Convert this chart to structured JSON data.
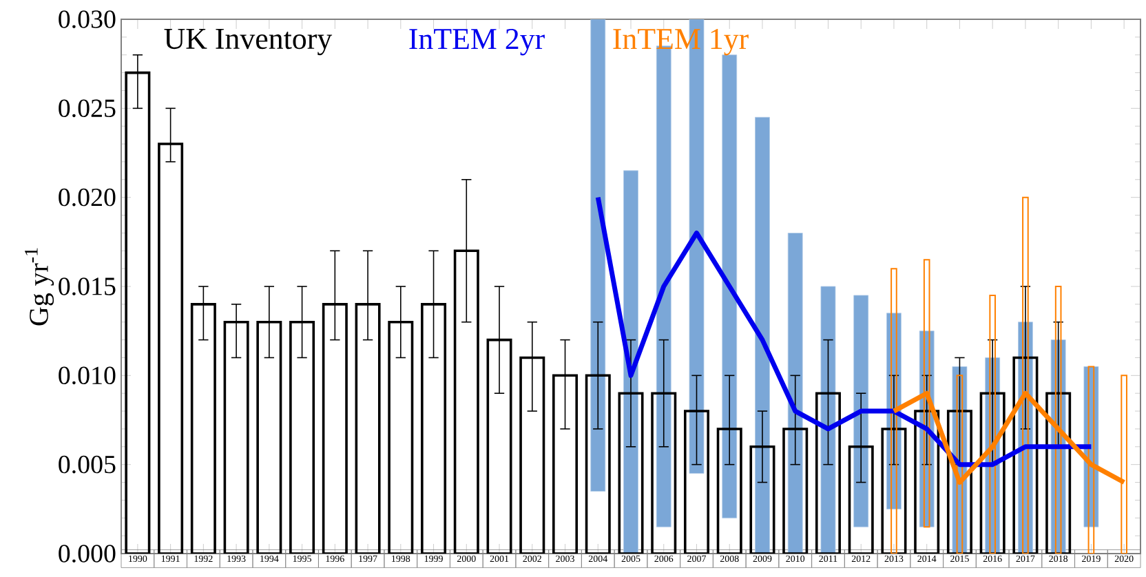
{
  "chart_data": {
    "type": "bar",
    "ylabel": "Gg yr$^{-1}$",
    "categories": [
      "1990",
      "1991",
      "1992",
      "1993",
      "1994",
      "1995",
      "1996",
      "1997",
      "1998",
      "1999",
      "2000",
      "2001",
      "2002",
      "2003",
      "2004",
      "2005",
      "2006",
      "2007",
      "2008",
      "2009",
      "2010",
      "2011",
      "2012",
      "2013",
      "2014",
      "2015",
      "2016",
      "2017",
      "2018",
      "2019",
      "2020"
    ],
    "ylim": [
      0,
      0.03
    ],
    "yticks": [
      {
        "value": 0,
        "label": "0.000"
      },
      {
        "value": 0.005,
        "label": "0.005"
      },
      {
        "value": 0.01,
        "label": "0.010"
      },
      {
        "value": 0.015,
        "label": "0.015"
      },
      {
        "value": 0.02,
        "label": "0.020"
      },
      {
        "value": 0.025,
        "label": "0.025"
      },
      {
        "value": 0.03,
        "label": "0.030"
      }
    ],
    "legend": "top left",
    "grid": false,
    "series": [
      {
        "name": "UK Inventory",
        "color": "#000000",
        "values": [
          0.027,
          0.023,
          0.014,
          0.013,
          0.013,
          0.013,
          0.014,
          0.014,
          0.013,
          0.014,
          0.017,
          0.012,
          0.011,
          0.01,
          0.01,
          0.009,
          0.009,
          0.008,
          0.007,
          0.006,
          0.007,
          0.009,
          0.006,
          0.007,
          0.008,
          0.008,
          0.009,
          0.011,
          0.009,
          null,
          null
        ],
        "errors": [
          [
            0.025,
            0.028
          ],
          [
            0.022,
            0.025
          ],
          [
            0.012,
            0.015
          ],
          [
            0.011,
            0.014
          ],
          [
            0.011,
            0.015
          ],
          [
            0.011,
            0.015
          ],
          [
            0.012,
            0.017
          ],
          [
            0.012,
            0.017
          ],
          [
            0.011,
            0.015
          ],
          [
            0.011,
            0.017
          ],
          [
            0.013,
            0.021
          ],
          [
            0.009,
            0.015
          ],
          [
            0.008,
            0.013
          ],
          [
            0.007,
            0.012
          ],
          [
            0.007,
            0.013
          ],
          [
            0.006,
            0.012
          ],
          [
            0.006,
            0.012
          ],
          [
            0.005,
            0.01
          ],
          [
            0.005,
            0.01
          ],
          [
            0.004,
            0.008
          ],
          [
            0.005,
            0.01
          ],
          [
            0.005,
            0.012
          ],
          [
            0.004,
            0.009
          ],
          [
            0.005,
            0.01
          ],
          [
            0.005,
            0.01
          ],
          [
            0.005,
            0.011
          ],
          [
            0.005,
            0.012
          ],
          [
            0.007,
            0.015
          ],
          [
            0.006,
            0.013
          ],
          null,
          null
        ]
      },
      {
        "type": "bar",
        "color": "#7ba7d7",
        "base": [
          null,
          null,
          null,
          null,
          null,
          null,
          null,
          null,
          null,
          null,
          null,
          null,
          null,
          null,
          0.0035,
          0,
          0.0015,
          0.0045,
          0.002,
          0,
          0,
          0,
          0.0015,
          0.0025,
          0.0015,
          0,
          0,
          0,
          0,
          0.0015,
          null
        ],
        "values": [
          null,
          null,
          null,
          null,
          null,
          null,
          null,
          null,
          null,
          null,
          null,
          null,
          null,
          null,
          0.0265,
          0.0215,
          0.027,
          0.0255,
          0.026,
          0.0245,
          0.018,
          0.015,
          0.013,
          0.011,
          0.011,
          0.0105,
          0.011,
          0.013,
          0.012,
          0.009,
          null
        ]
      },
      {
        "name": "InTEM 2yr",
        "type": "line",
        "color": "#0000ee",
        "values": [
          null,
          null,
          null,
          null,
          null,
          null,
          null,
          null,
          null,
          null,
          null,
          null,
          null,
          null,
          0.02,
          0.01,
          0.015,
          0.018,
          0.015,
          0.012,
          0.008,
          0.007,
          0.008,
          0.008,
          0.007,
          0.005,
          0.005,
          0.006,
          0.006,
          0.006,
          null
        ]
      },
      {
        "type": "bar",
        "color": "#ff8000",
        "base": [
          null,
          null,
          null,
          null,
          null,
          null,
          null,
          null,
          null,
          null,
          null,
          null,
          null,
          null,
          null,
          null,
          null,
          null,
          null,
          null,
          null,
          null,
          null,
          0,
          0.0015,
          0,
          0,
          0,
          0,
          0,
          0
        ],
        "values": [
          null,
          null,
          null,
          null,
          null,
          null,
          null,
          null,
          null,
          null,
          null,
          null,
          null,
          null,
          null,
          null,
          null,
          null,
          null,
          null,
          null,
          null,
          null,
          0.016,
          0.015,
          0.01,
          0.0145,
          0.02,
          0.015,
          0.0105,
          0.01
        ]
      },
      {
        "name": "InTEM 1yr",
        "type": "line",
        "color": "#ff8000",
        "values": [
          null,
          null,
          null,
          null,
          null,
          null,
          null,
          null,
          null,
          null,
          null,
          null,
          null,
          null,
          null,
          null,
          null,
          null,
          null,
          null,
          null,
          null,
          null,
          0.008,
          0.009,
          0.004,
          0.006,
          0.009,
          0.007,
          0.005,
          0.004
        ]
      }
    ]
  }
}
